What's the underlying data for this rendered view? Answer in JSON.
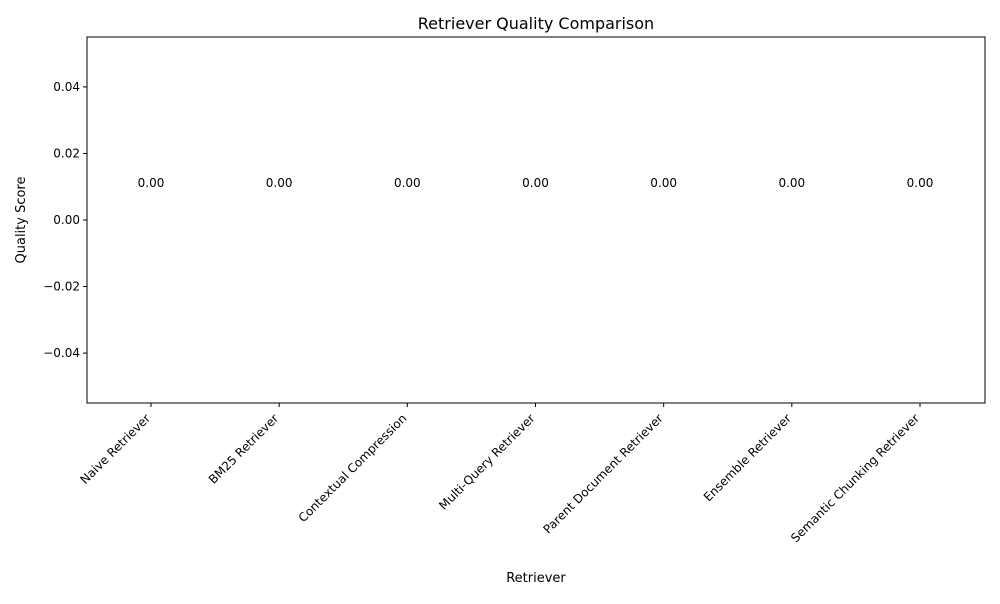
{
  "chart_data": {
    "type": "bar",
    "title": "Retriever Quality Comparison",
    "xlabel": "Retriever",
    "ylabel": "Quality Score",
    "categories": [
      "Naive Retriever",
      "BM25 Retriever",
      "Contextual Compression",
      "Multi-Query Retriever",
      "Parent Document Retriever",
      "Ensemble Retriever",
      "Semantic Chunking Retriever"
    ],
    "values": [
      0,
      0,
      0,
      0,
      0,
      0,
      0
    ],
    "data_labels": [
      "0.00",
      "0.00",
      "0.00",
      "0.00",
      "0.00",
      "0.00",
      "0.00"
    ],
    "ylim": [
      -0.055,
      0.055
    ],
    "yticks": [
      -0.04,
      -0.02,
      0.0,
      0.02,
      0.04
    ],
    "ytick_labels": [
      "−0.04",
      "−0.02",
      "0.00",
      "0.02",
      "0.04"
    ],
    "grid": false,
    "legend": "none",
    "colors": {
      "axis": "#000000",
      "text": "#000000",
      "bar": "#1f77b4"
    }
  }
}
